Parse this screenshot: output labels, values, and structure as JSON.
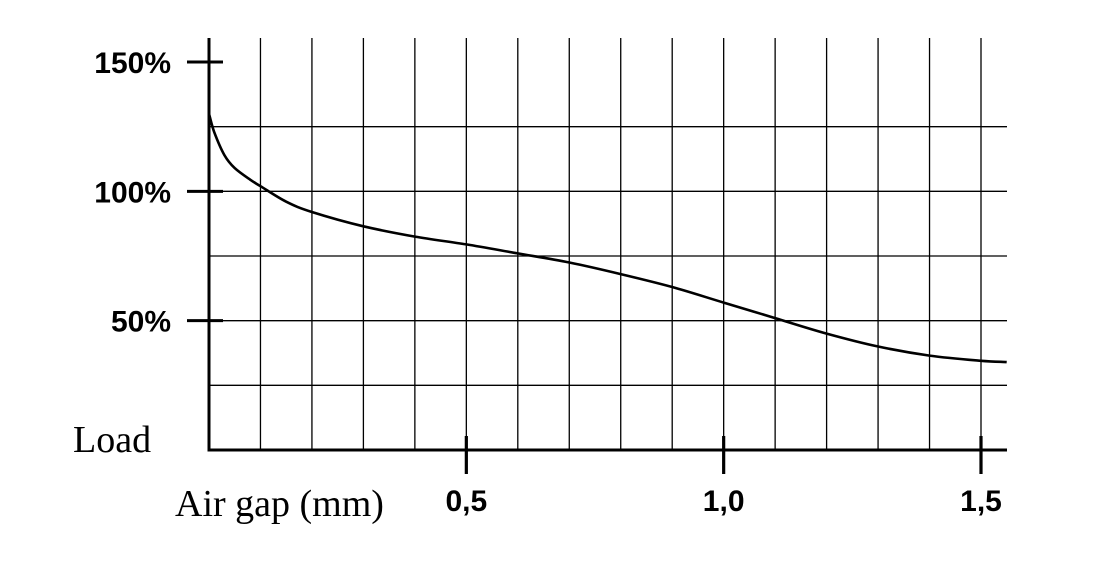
{
  "chart_data": {
    "type": "line",
    "xlabel": "Air gap (mm)",
    "ylabel": "Load",
    "xlim": [
      0,
      1.55
    ],
    "ylim": [
      0,
      150
    ],
    "x_ticks": [
      0.5,
      1.0,
      1.5
    ],
    "x_tick_labels": [
      "0,5",
      "1,0",
      "1,5"
    ],
    "y_ticks": [
      50,
      100,
      150
    ],
    "y_tick_labels": [
      "50%",
      "100%",
      "150%"
    ],
    "grid": true,
    "series": [
      {
        "x": [
          0,
          0.01,
          0.03,
          0.05,
          0.08,
          0.1,
          0.15,
          0.2,
          0.3,
          0.4,
          0.5,
          0.6,
          0.7,
          0.8,
          0.9,
          1.0,
          1.1,
          1.2,
          1.3,
          1.4,
          1.5,
          1.55
        ],
        "values": [
          130,
          123,
          114,
          109,
          104.5,
          102,
          96,
          92,
          86.5,
          82.5,
          79.5,
          76,
          72.5,
          68,
          63,
          57,
          51,
          45,
          40,
          36.5,
          34.5,
          34
        ]
      }
    ]
  }
}
